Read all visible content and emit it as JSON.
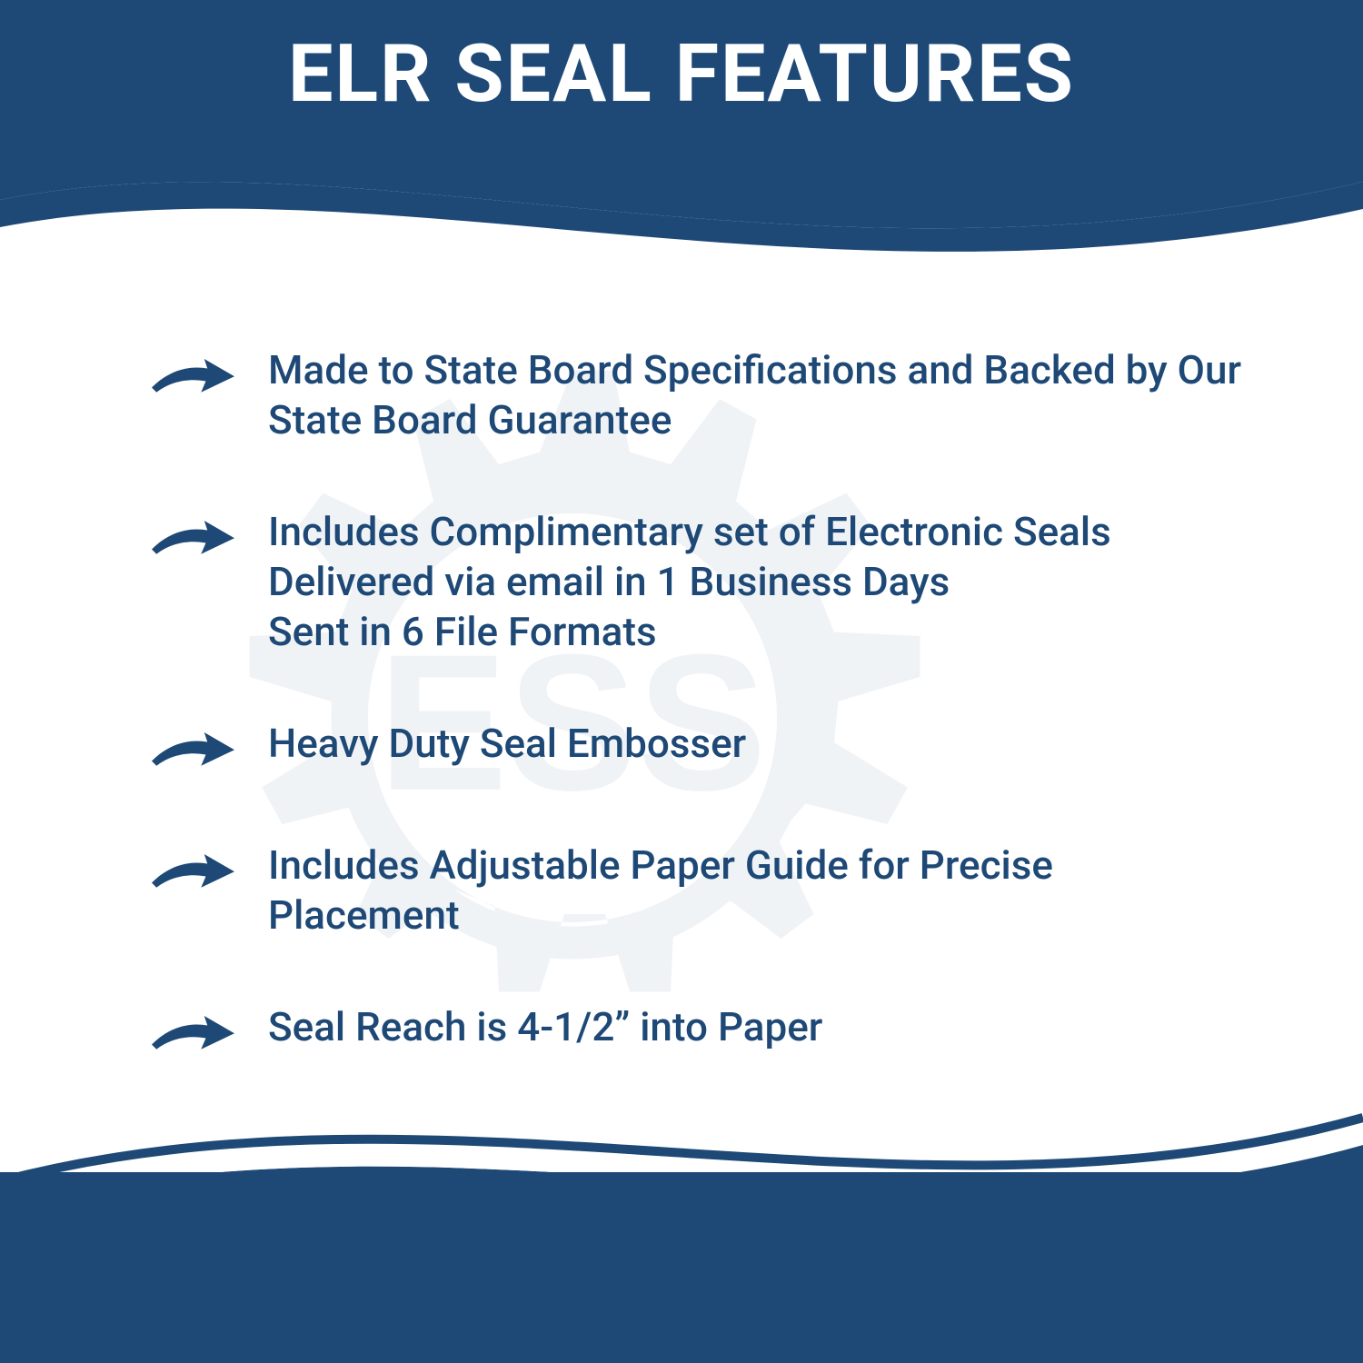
{
  "title": "ELR SEAL FEATURES",
  "colors": {
    "brand": "#1e4976",
    "white": "#ffffff",
    "watermark": "#1e4976"
  },
  "features": [
    {
      "text": "Made to State Board Specifications and Backed by Our State Board Guarantee"
    },
    {
      "text": "Includes Complimentary set of Electronic Seals Delivered via email in 1 Business Days\nSent in 6 File Formats"
    },
    {
      "text": "Heavy Duty Seal Embosser"
    },
    {
      "text": "Includes Adjustable Paper Guide for Precise Placement"
    },
    {
      "text": "Seal Reach is 4-1/2” into Paper"
    }
  ],
  "watermark_text": "ESS"
}
